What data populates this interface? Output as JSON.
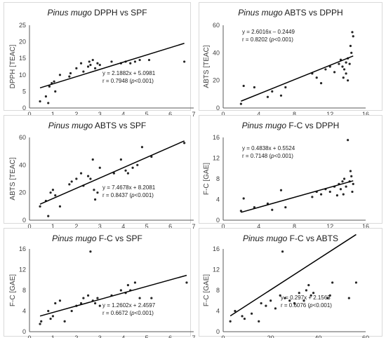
{
  "chart_data": [
    {
      "type": "scatter",
      "title_species": "Pinus mugo",
      "title_rest": " DPPH vs SPF",
      "xlabel": "SPF",
      "ylabel": "DPPH [TEAC]",
      "xlim": [
        0,
        7
      ],
      "ylim": [
        0,
        25
      ],
      "xticks": [
        0,
        1,
        2,
        3,
        4,
        5,
        6,
        7
      ],
      "yticks": [
        0,
        5,
        10,
        15,
        20,
        25
      ],
      "trend": {
        "slope": 2.1882,
        "intercept": 5.0981
      },
      "annotation": {
        "equation": "y = 2.1882x + 5.0981",
        "r_prefix": "r = 0.7948 (",
        "p": "p",
        "r_suffix": "<0.001)"
      },
      "points": [
        [
          0.45,
          2.0
        ],
        [
          0.7,
          3.5
        ],
        [
          0.8,
          1.5
        ],
        [
          0.85,
          6.5
        ],
        [
          0.95,
          7.5
        ],
        [
          1.05,
          8.0
        ],
        [
          1.1,
          5.0
        ],
        [
          1.3,
          10.0
        ],
        [
          1.7,
          9.5
        ],
        [
          1.75,
          10.5
        ],
        [
          2.0,
          12.0
        ],
        [
          2.2,
          13.5
        ],
        [
          2.3,
          11.0
        ],
        [
          2.5,
          12.5
        ],
        [
          2.55,
          14.0
        ],
        [
          2.6,
          13.0
        ],
        [
          2.7,
          14.5
        ],
        [
          2.8,
          12.0
        ],
        [
          2.9,
          13.5
        ],
        [
          3.0,
          13.0
        ],
        [
          3.5,
          14.0
        ],
        [
          3.9,
          13.5
        ],
        [
          4.1,
          14.0
        ],
        [
          4.3,
          13.5
        ],
        [
          4.5,
          14.0
        ],
        [
          4.7,
          14.5
        ],
        [
          5.1,
          14.5
        ],
        [
          6.6,
          14.0
        ]
      ]
    },
    {
      "type": "scatter",
      "title_species": "Pinus mugo",
      "title_rest": " ABTS vs DPPH",
      "xlabel": "DPPH [TEAC]",
      "ylabel": "ABTS [TEAC]",
      "xlim": [
        0,
        16
      ],
      "ylim": [
        0,
        60
      ],
      "xticks": [
        0,
        4,
        8,
        12,
        16
      ],
      "yticks": [
        0,
        20,
        40,
        60
      ],
      "trend": {
        "slope": 2.6016,
        "intercept": -0.2449
      },
      "annotation": {
        "equation": "y = 2.6016x – 0.2449",
        "r_prefix": "r = 0.8202 (",
        "p": "p",
        "r_suffix": "<0.001)"
      },
      "points": [
        [
          2.0,
          3.0
        ],
        [
          2.3,
          16.0
        ],
        [
          3.5,
          15.0
        ],
        [
          5.0,
          8.0
        ],
        [
          5.5,
          12.0
        ],
        [
          6.5,
          9.0
        ],
        [
          7.0,
          15.0
        ],
        [
          10.0,
          25.0
        ],
        [
          10.5,
          22.0
        ],
        [
          11.0,
          18.0
        ],
        [
          11.5,
          28.0
        ],
        [
          12.0,
          30.0
        ],
        [
          12.5,
          26.0
        ],
        [
          13.0,
          32.0
        ],
        [
          13.2,
          35.0
        ],
        [
          13.4,
          30.0
        ],
        [
          13.5,
          22.0
        ],
        [
          13.6,
          28.0
        ],
        [
          13.8,
          33.0
        ],
        [
          14.0,
          36.0
        ],
        [
          14.2,
          32.0
        ],
        [
          14.3,
          45.0
        ],
        [
          14.4,
          40.0
        ],
        [
          14.5,
          55.0
        ],
        [
          14.6,
          52.0
        ],
        [
          14.0,
          20.0
        ],
        [
          13.8,
          25.0
        ]
      ]
    },
    {
      "type": "scatter",
      "title_species": "Pinus mugo",
      "title_rest": " ABTS vs SPF",
      "xlabel": "SPF",
      "ylabel": "ABTS [TEAC]",
      "xlim": [
        0,
        7
      ],
      "ylim": [
        0,
        60
      ],
      "xticks": [
        0,
        1,
        2,
        3,
        4,
        5,
        6,
        7
      ],
      "yticks": [
        0,
        20,
        40,
        60
      ],
      "trend": {
        "slope": 7.4678,
        "intercept": 8.2081
      },
      "annotation": {
        "equation": "y = 7.4678x + 8.2081",
        "r_prefix": "r = 0.8437 (",
        "p": "p",
        "r_suffix": "<0.001)"
      },
      "points": [
        [
          0.45,
          10.0
        ],
        [
          0.7,
          14.0
        ],
        [
          0.8,
          3.0
        ],
        [
          0.9,
          20.0
        ],
        [
          1.0,
          22.0
        ],
        [
          1.1,
          18.0
        ],
        [
          1.3,
          10.0
        ],
        [
          1.7,
          26.0
        ],
        [
          1.8,
          28.0
        ],
        [
          2.0,
          30.0
        ],
        [
          2.2,
          34.0
        ],
        [
          2.3,
          25.0
        ],
        [
          2.5,
          32.0
        ],
        [
          2.6,
          30.0
        ],
        [
          2.7,
          44.0
        ],
        [
          2.75,
          22.0
        ],
        [
          2.8,
          15.0
        ],
        [
          2.9,
          20.0
        ],
        [
          3.0,
          38.0
        ],
        [
          3.6,
          34.0
        ],
        [
          3.9,
          44.0
        ],
        [
          4.1,
          36.0
        ],
        [
          4.2,
          34.0
        ],
        [
          4.4,
          38.0
        ],
        [
          4.6,
          40.0
        ],
        [
          4.8,
          53.0
        ],
        [
          5.2,
          46.0
        ],
        [
          6.6,
          56.0
        ]
      ]
    },
    {
      "type": "scatter",
      "title_species": "Pinus mugo",
      "title_rest": " F-C vs DPPH",
      "xlabel": "DPPH [TEAC]",
      "ylabel": "F-C [GAE]",
      "xlim": [
        0,
        16
      ],
      "ylim": [
        0,
        16
      ],
      "xticks": [
        0,
        4,
        8,
        12,
        16
      ],
      "yticks": [
        0,
        4,
        8,
        12,
        16
      ],
      "trend": {
        "slope": 0.4838,
        "intercept": 0.5524
      },
      "annotation": {
        "equation": "y = 0.4838x + 0.5524",
        "r_prefix": "r = 0.7148 (",
        "p": "p",
        "r_suffix": "<0.001)"
      },
      "points": [
        [
          2.0,
          1.8
        ],
        [
          2.3,
          4.2
        ],
        [
          3.5,
          2.5
        ],
        [
          5.0,
          3.2
        ],
        [
          5.5,
          2.0
        ],
        [
          6.5,
          5.8
        ],
        [
          7.0,
          2.5
        ],
        [
          10.0,
          4.5
        ],
        [
          10.5,
          5.5
        ],
        [
          11.0,
          5.0
        ],
        [
          11.5,
          6.0
        ],
        [
          12.0,
          5.5
        ],
        [
          12.5,
          6.5
        ],
        [
          13.0,
          7.0
        ],
        [
          13.2,
          6.0
        ],
        [
          13.4,
          7.5
        ],
        [
          13.6,
          8.0
        ],
        [
          13.8,
          6.5
        ],
        [
          14.0,
          15.5
        ],
        [
          14.2,
          7.5
        ],
        [
          14.3,
          9.5
        ],
        [
          14.4,
          8.5
        ],
        [
          14.5,
          5.5
        ],
        [
          14.6,
          7.0
        ],
        [
          13.5,
          5.0
        ],
        [
          12.8,
          4.8
        ]
      ]
    },
    {
      "type": "scatter",
      "title_species": "Pinus mugo",
      "title_rest": " F-C vs SPF",
      "xlabel": "SPF",
      "ylabel": "F-C [GAE]",
      "xlim": [
        0,
        7
      ],
      "ylim": [
        0,
        16
      ],
      "xticks": [
        0,
        1,
        2,
        3,
        4,
        5,
        6,
        7
      ],
      "yticks": [
        0,
        4,
        8,
        12,
        16
      ],
      "trend": {
        "slope": 1.2602,
        "intercept": 2.4597
      },
      "annotation": {
        "equation": "y = 1.2602x + 2.4597",
        "r_prefix": "r = 0.6672 (",
        "p": "p",
        "r_suffix": "<0.001)"
      },
      "points": [
        [
          0.45,
          1.5
        ],
        [
          0.5,
          2.0
        ],
        [
          0.8,
          4.0
        ],
        [
          0.9,
          2.5
        ],
        [
          1.0,
          3.0
        ],
        [
          1.1,
          5.5
        ],
        [
          1.3,
          6.0
        ],
        [
          1.5,
          2.0
        ],
        [
          1.8,
          4.0
        ],
        [
          2.0,
          5.0
        ],
        [
          2.2,
          5.5
        ],
        [
          2.3,
          6.5
        ],
        [
          2.5,
          7.0
        ],
        [
          2.6,
          15.5
        ],
        [
          2.7,
          6.0
        ],
        [
          2.8,
          5.5
        ],
        [
          2.9,
          6.5
        ],
        [
          3.0,
          5.0
        ],
        [
          3.5,
          7.0
        ],
        [
          3.9,
          8.0
        ],
        [
          4.1,
          7.5
        ],
        [
          4.2,
          9.0
        ],
        [
          4.3,
          8.0
        ],
        [
          4.5,
          9.5
        ],
        [
          4.7,
          6.5
        ],
        [
          5.2,
          6.5
        ],
        [
          6.7,
          9.5
        ]
      ]
    },
    {
      "type": "scatter",
      "title_species": "Pinus mugo",
      "title_rest": " F-C vs ABTS",
      "xlabel": "ABTS [TEAC]",
      "ylabel": "F-C [GAE]",
      "xlim": [
        0,
        60
      ],
      "ylim": [
        0,
        16
      ],
      "xticks": [
        0,
        20,
        40,
        60
      ],
      "yticks": [
        0,
        4,
        8,
        12,
        16
      ],
      "trend": {
        "slope": 0.297,
        "intercept": 2.1563
      },
      "annotation": {
        "equation": "y = 0.297x + 2.1563",
        "r_prefix": "r = 0.6076 (",
        "p": "p",
        "r_suffix": "<0.001)"
      },
      "points": [
        [
          3.0,
          2.0
        ],
        [
          5.0,
          4.0
        ],
        [
          8.0,
          3.0
        ],
        [
          9.0,
          2.5
        ],
        [
          12.0,
          3.5
        ],
        [
          15.0,
          2.0
        ],
        [
          16.0,
          5.5
        ],
        [
          18.0,
          5.0
        ],
        [
          20.0,
          6.0
        ],
        [
          22.0,
          4.5
        ],
        [
          24.0,
          7.0
        ],
        [
          25.0,
          15.5
        ],
        [
          26.0,
          6.5
        ],
        [
          28.0,
          6.0
        ],
        [
          30.0,
          5.5
        ],
        [
          32.0,
          7.5
        ],
        [
          34.0,
          6.0
        ],
        [
          35.0,
          8.0
        ],
        [
          36.0,
          9.0
        ],
        [
          37.0,
          7.0
        ],
        [
          38.0,
          7.5
        ],
        [
          44.0,
          6.5
        ],
        [
          45.0,
          7.0
        ],
        [
          46.0,
          9.5
        ],
        [
          53.0,
          6.5
        ],
        [
          56.0,
          9.5
        ]
      ]
    }
  ]
}
